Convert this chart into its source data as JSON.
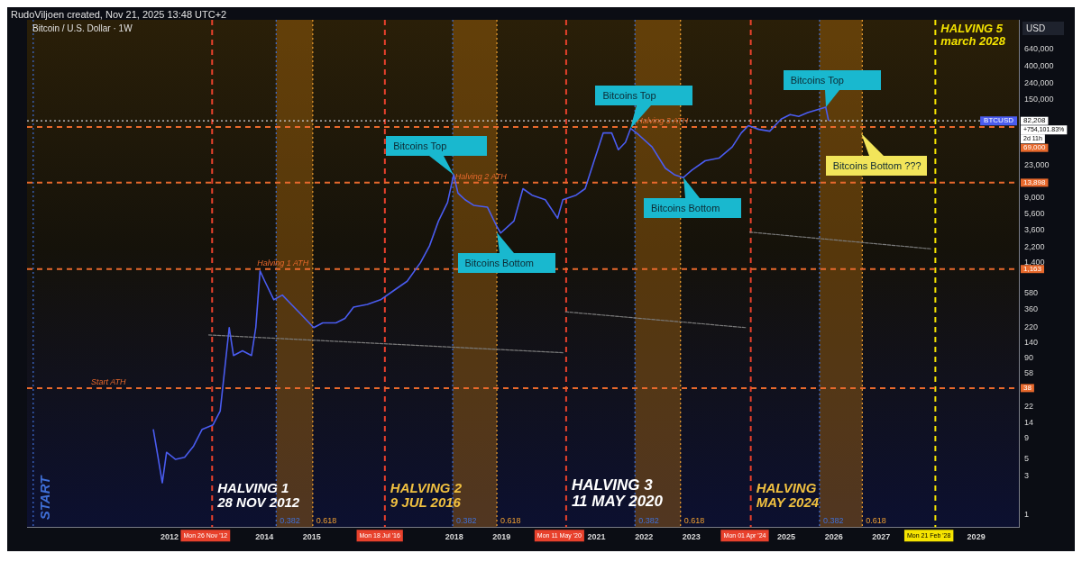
{
  "chart_data": {
    "type": "line",
    "title": "Bitcoin / U.S. Dollar · 1W",
    "subtitle": "RudoViljoen created, Nov 21, 2025 13:48 UTC+2",
    "ylabel": "USD",
    "log": "y",
    "legend": false,
    "xlim": [
      2009.0,
      2029.9
    ],
    "xticks": [
      2012,
      2014,
      2015,
      2018,
      2019,
      2021,
      2022,
      2023,
      2025,
      2026,
      2027,
      2029
    ],
    "ylim": [
      0.7,
      1500000
    ],
    "yticks": [
      1,
      3,
      5,
      9,
      14,
      22,
      58,
      90,
      140,
      220,
      360,
      580,
      {
        "value": 1400,
        "label": "1,400"
      },
      {
        "value": 2200,
        "label": "2,200"
      },
      {
        "value": 3600,
        "label": "3,600"
      },
      {
        "value": 5600,
        "label": "5,600"
      },
      {
        "value": 9000,
        "label": "9,000"
      },
      {
        "value": 23000,
        "label": "23,000"
      },
      {
        "value": 150000,
        "label": "150,000"
      },
      {
        "value": 240000,
        "label": "240,000"
      },
      {
        "value": 400000,
        "label": "400,000"
      },
      {
        "value": 640000,
        "label": "640,000"
      }
    ],
    "series": [
      {
        "name": "BTCUSD",
        "color": "#4a5cf0",
        "x": [
          2011.66,
          2011.76,
          2011.85,
          2011.94,
          2012.13,
          2012.32,
          2012.51,
          2012.69,
          2012.92,
          2013.07,
          2013.26,
          2013.35,
          2013.54,
          2013.73,
          2013.82,
          2013.91,
          2014.01,
          2014.2,
          2014.38,
          2014.57,
          2014.76,
          2015.04,
          2015.23,
          2015.51,
          2015.7,
          2015.88,
          2016.17,
          2016.45,
          2016.73,
          2017.01,
          2017.29,
          2017.48,
          2017.67,
          2017.86,
          2017.99,
          2018.08,
          2018.23,
          2018.41,
          2018.7,
          2018.89,
          2018.98,
          2019.26,
          2019.45,
          2019.64,
          2019.92,
          2020.18,
          2020.29,
          2020.57,
          2020.76,
          2020.95,
          2021.14,
          2021.32,
          2021.46,
          2021.61,
          2021.72,
          2021.89,
          2022.17,
          2022.45,
          2022.64,
          2022.83,
          2023.01,
          2023.29,
          2023.58,
          2023.86,
          2024.05,
          2024.2,
          2024.42,
          2024.65,
          2024.89,
          2025.08,
          2025.26,
          2025.45,
          2025.64,
          2025.83,
          2025.89
        ],
        "values": [
          11.6,
          5.2,
          2.5,
          6.0,
          4.9,
          5.2,
          7.2,
          11.6,
          13.2,
          19.7,
          216,
          97,
          111,
          97,
          216,
          1100,
          819,
          481,
          550,
          421,
          323,
          216,
          247,
          247,
          282,
          389,
          421,
          481,
          628,
          819,
          1396,
          2254,
          4624,
          7870,
          17500,
          10300,
          8530,
          7260,
          6890,
          4050,
          3270,
          4624,
          11700,
          9730,
          8530,
          5000,
          8530,
          9730,
          11700,
          26100,
          58000,
          58000,
          35900,
          44400,
          66200,
          55000,
          38900,
          21100,
          17500,
          16100,
          20000,
          26100,
          28200,
          38900,
          58000,
          71600,
          64400,
          61100,
          86300,
          98600,
          93500,
          104000,
          113000,
          122000,
          82208
        ]
      },
      {
        "color": "#7a7a7a",
        "line_style": "dashed",
        "x": [
          2012.83,
          2020.29
        ],
        "values": [
          175,
          105
        ]
      },
      {
        "color": "#7a7a7a",
        "line_style": "dashed",
        "x": [
          2020.35,
          2024.14
        ],
        "values": [
          340,
          216
        ]
      },
      {
        "color": "#7a7a7a",
        "line_style": "dashed",
        "x": [
          2024.23,
          2028.04
        ],
        "values": [
          3360,
          2080
        ]
      }
    ],
    "bands": [
      {
        "axis": "x",
        "from": 2014.25,
        "to": 2015.02,
        "color": "#b8700c"
      },
      {
        "axis": "x",
        "from": 2017.97,
        "to": 2018.9,
        "color": "#b8700c"
      },
      {
        "axis": "x",
        "from": 2021.81,
        "to": 2022.77,
        "color": "#b8700c"
      },
      {
        "axis": "x",
        "from": 2025.7,
        "to": 2026.6,
        "color": "#b8700c"
      }
    ],
    "ref_lines": [
      {
        "axis": "x",
        "value": 2009.13,
        "label": null,
        "color": "#3f6fd6",
        "line_style": "dotted"
      },
      {
        "axis": "x",
        "value": 2012.9,
        "label": "Mon 26 Nov '12",
        "color": "#e8412c",
        "line_style": "dashed"
      },
      {
        "axis": "x",
        "value": 2016.54,
        "label": "Mon 18 Jul '16",
        "color": "#e8412c",
        "line_style": "dashed"
      },
      {
        "axis": "x",
        "value": 2020.36,
        "label": "Mon 11 May '20",
        "color": "#e8412c",
        "line_style": "dashed"
      },
      {
        "axis": "x",
        "value": 2024.25,
        "label": "Mon 01 Apr '24",
        "color": "#e8412c",
        "line_style": "dashed"
      },
      {
        "axis": "x",
        "value": 2028.14,
        "label": "Mon 21 Feb '28",
        "color": "#f5e400",
        "line_style": "dashed"
      },
      {
        "axis": "x",
        "value": 2014.25,
        "label": null,
        "color": "#3f6fd6",
        "line_style": "dotted"
      },
      {
        "axis": "x",
        "value": 2017.97,
        "label": null,
        "color": "#3f6fd6",
        "line_style": "dotted"
      },
      {
        "axis": "x",
        "value": 2021.81,
        "label": null,
        "color": "#3f6fd6",
        "line_style": "dotted"
      },
      {
        "axis": "x",
        "value": 2025.7,
        "label": null,
        "color": "#3f6fd6",
        "line_style": "dotted"
      },
      {
        "axis": "x",
        "value": 2015.02,
        "label": null,
        "color": "#f0a030",
        "line_style": "dotted"
      },
      {
        "axis": "x",
        "value": 2018.9,
        "label": null,
        "color": "#f0a030",
        "line_style": "dotted"
      },
      {
        "axis": "x",
        "value": 2022.77,
        "label": null,
        "color": "#f0a030",
        "line_style": "dotted"
      },
      {
        "axis": "x",
        "value": 2026.6,
        "label": null,
        "color": "#f0a030",
        "line_style": "dotted"
      },
      {
        "axis": "y",
        "value": 38,
        "label": "38",
        "color": "#e8692c",
        "line_style": "dashed"
      },
      {
        "axis": "y",
        "value": 1163,
        "label": "1,163",
        "color": "#e8692c",
        "line_style": "dashed"
      },
      {
        "axis": "y",
        "value": 13898,
        "label": "13,898",
        "color": "#e8692c",
        "line_style": "dashed"
      },
      {
        "axis": "y",
        "value": 69000,
        "label": "69,000",
        "color": "#e8692c",
        "line_style": "dashed"
      },
      {
        "axis": "y",
        "value": 82208,
        "label": "82,208",
        "color": "#d0d4dc",
        "line_style": "dotted"
      }
    ],
    "annotations": [
      {
        "text": "Bitcoins Top",
        "x": 2017.99,
        "y": 17500
      },
      {
        "text": "Bitcoins Bottom",
        "x": 2018.89,
        "y": 3300
      },
      {
        "text": "Bitcoins Top",
        "x": 2021.72,
        "y": 66200
      },
      {
        "text": "Bitcoins Bottom",
        "x": 2022.83,
        "y": 16100
      },
      {
        "text": "Bitcoins Top",
        "x": 2025.83,
        "y": 122000
      },
      {
        "text": "Bitcoins Bottom ???",
        "x": 2026.57,
        "y": 58000
      },
      "HALVING 1\n28 NOV 2012",
      "HALVING 2\n9 JUL 2016",
      "HALVING 3\n11 MAY 2020",
      "HALVING\nMAY 2024",
      "HALVING 5\nmarch 2028",
      "START",
      "+754,101.83%",
      "2d 11h",
      {
        "text": "Start ATH",
        "x": 2010.35,
        "y": 38
      },
      {
        "text": "Halving 1 ATH",
        "x": 2013.85,
        "y": 1163
      },
      {
        "text": "Halving 2 ATH",
        "x": 2018.02,
        "y": 13898
      },
      {
        "text": "Halving 3 ATH",
        "x": 2021.85,
        "y": 69000
      },
      "0.382",
      "0.382",
      "0.382",
      "0.382",
      "0.618",
      "0.618",
      "0.618",
      "0.618"
    ]
  }
}
